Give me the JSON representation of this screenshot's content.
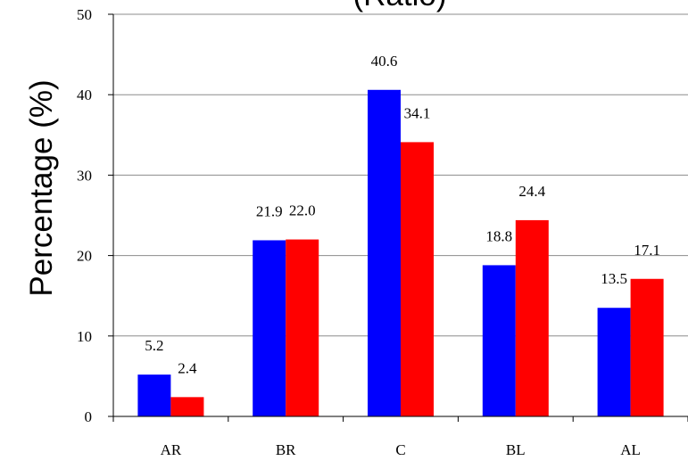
{
  "chart_data": {
    "type": "bar",
    "title": "(Ratio)",
    "xlabel": "",
    "ylabel": "Percentage (%)",
    "categories": [
      "AR",
      "BR",
      "C",
      "BL",
      "AL"
    ],
    "series": [
      {
        "values": [
          5.2,
          21.9,
          40.6,
          18.8,
          13.5
        ],
        "color": "#0000ff"
      },
      {
        "values": [
          2.4,
          22.0,
          34.1,
          24.4,
          17.1
        ],
        "color": "#ff0000"
      }
    ],
    "data_labels": [
      [
        "5.2",
        "21.9",
        "40.6",
        "18.8",
        "13.5"
      ],
      [
        "2.4",
        "22.0",
        "34.1",
        "24.4",
        "17.1"
      ]
    ],
    "ylim": [
      0,
      50
    ],
    "yticks": [
      "0",
      "10",
      "20",
      "30",
      "40",
      "50"
    ],
    "grid": true,
    "legend": "none"
  }
}
